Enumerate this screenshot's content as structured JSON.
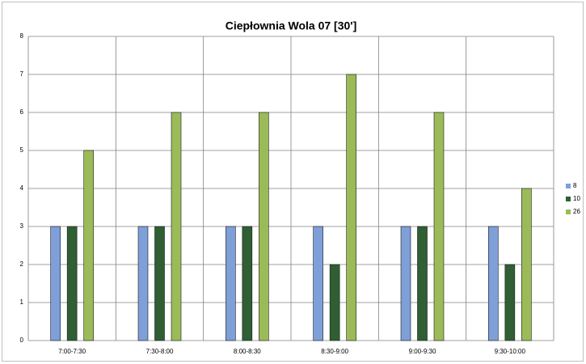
{
  "chart_data": {
    "type": "bar",
    "title": "Ciepłownia Wola 07 [30']",
    "categories": [
      "7:00-7:30",
      "7:30-8:00",
      "8:00-8:30",
      "8:30-9:00",
      "9:00-9:30",
      "9:30-10:00"
    ],
    "series": [
      {
        "name": "8",
        "color": "#7f9fd8",
        "values": [
          3,
          3,
          3,
          3,
          3,
          3
        ]
      },
      {
        "name": "10",
        "color": "#2f5f33",
        "values": [
          3,
          3,
          3,
          2,
          3,
          2
        ]
      },
      {
        "name": "26",
        "color": "#9bbb59",
        "values": [
          5,
          6,
          6,
          7,
          6,
          4
        ]
      }
    ],
    "ylim": [
      0,
      8
    ],
    "yticks": [
      0,
      1,
      2,
      3,
      4,
      5,
      6,
      7,
      8
    ],
    "grid": true,
    "legend": "right"
  }
}
